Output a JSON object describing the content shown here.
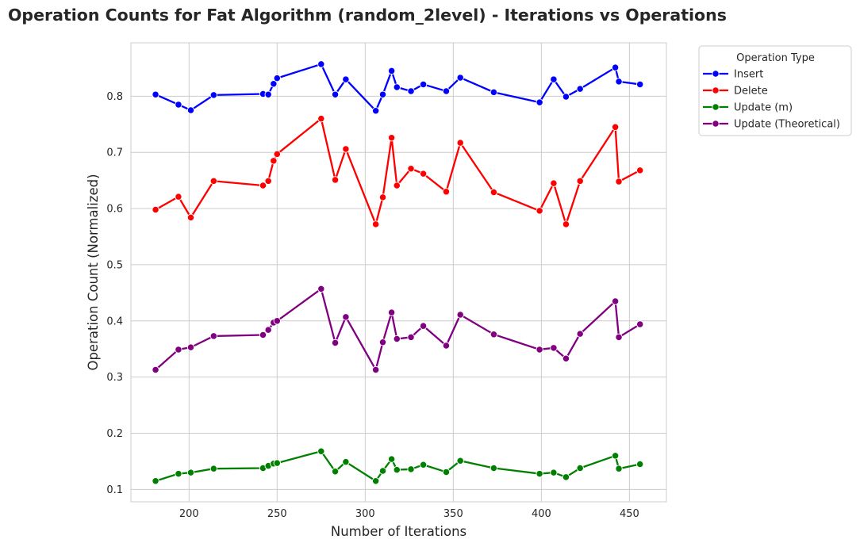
{
  "chart_data": {
    "type": "line",
    "title": "Operation Counts for Fat Algorithm (random_2level) - Iterations vs Operations",
    "xlabel": "Number of Iterations",
    "ylabel": "Operation Count (Normalized)",
    "xlim": [
      167,
      471
    ],
    "ylim": [
      0.078,
      0.895
    ],
    "xticks": [
      200,
      250,
      300,
      350,
      400,
      450
    ],
    "yticks": [
      0.1,
      0.2,
      0.3,
      0.4,
      0.5,
      0.6,
      0.7,
      0.8
    ],
    "grid": true,
    "legend": {
      "title": "Operation Type",
      "placement": "outside-top-right"
    },
    "series": [
      {
        "name": "Insert",
        "color": "#0000ff",
        "x": [
          181,
          194,
          201,
          214,
          242,
          245,
          248,
          250,
          275,
          283,
          289,
          306,
          310,
          315,
          318,
          326,
          333,
          346,
          354,
          373,
          399,
          407,
          414,
          422,
          442,
          444,
          456
        ],
        "y": [
          0.803,
          0.785,
          0.775,
          0.802,
          0.804,
          0.803,
          0.822,
          0.832,
          0.857,
          0.803,
          0.83,
          0.774,
          0.803,
          0.845,
          0.816,
          0.809,
          0.821,
          0.809,
          0.833,
          0.807,
          0.789,
          0.83,
          0.799,
          0.813,
          0.851,
          0.826,
          0.821
        ]
      },
      {
        "name": "Delete",
        "color": "#ff0000",
        "x": [
          181,
          194,
          201,
          214,
          242,
          245,
          248,
          250,
          275,
          283,
          289,
          306,
          310,
          315,
          318,
          326,
          333,
          346,
          354,
          373,
          399,
          407,
          414,
          422,
          442,
          444,
          456
        ],
        "y": [
          0.598,
          0.621,
          0.584,
          0.649,
          0.641,
          0.649,
          0.685,
          0.697,
          0.76,
          0.651,
          0.706,
          0.572,
          0.62,
          0.726,
          0.641,
          0.671,
          0.662,
          0.63,
          0.717,
          0.629,
          0.596,
          0.645,
          0.572,
          0.649,
          0.745,
          0.648,
          0.668
        ]
      },
      {
        "name": "Update (m)",
        "color": "#008000",
        "x": [
          181,
          194,
          201,
          214,
          242,
          245,
          248,
          250,
          275,
          283,
          289,
          306,
          310,
          315,
          318,
          326,
          333,
          346,
          354,
          373,
          399,
          407,
          414,
          422,
          442,
          444,
          456
        ],
        "y": [
          0.115,
          0.128,
          0.13,
          0.137,
          0.138,
          0.142,
          0.146,
          0.147,
          0.168,
          0.132,
          0.149,
          0.115,
          0.133,
          0.154,
          0.135,
          0.136,
          0.144,
          0.131,
          0.151,
          0.138,
          0.128,
          0.13,
          0.122,
          0.138,
          0.16,
          0.137,
          0.145
        ]
      },
      {
        "name": "Update (Theoretical)",
        "color": "#800080",
        "x": [
          181,
          194,
          201,
          214,
          242,
          245,
          248,
          250,
          275,
          283,
          289,
          306,
          310,
          315,
          318,
          326,
          333,
          346,
          354,
          373,
          399,
          407,
          414,
          422,
          442,
          444,
          456
        ],
        "y": [
          0.313,
          0.349,
          0.353,
          0.373,
          0.375,
          0.384,
          0.397,
          0.4,
          0.457,
          0.361,
          0.407,
          0.313,
          0.362,
          0.415,
          0.368,
          0.371,
          0.391,
          0.356,
          0.411,
          0.376,
          0.349,
          0.352,
          0.333,
          0.377,
          0.435,
          0.371,
          0.394
        ]
      }
    ]
  }
}
